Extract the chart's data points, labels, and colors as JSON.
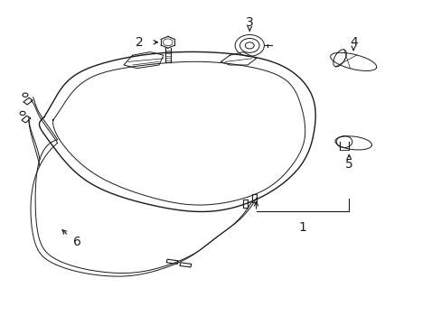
{
  "bg_color": "#ffffff",
  "line_color": "#1a1a1a",
  "fig_width": 4.89,
  "fig_height": 3.6,
  "dpi": 100,
  "label_fontsize": 10,
  "headlamp_outer": {
    "x": [
      0.17,
      0.22,
      0.36,
      0.52,
      0.64,
      0.71,
      0.74,
      0.73,
      0.67,
      0.56,
      0.42,
      0.28,
      0.18,
      0.13,
      0.12,
      0.14,
      0.17
    ],
    "y": [
      0.72,
      0.77,
      0.81,
      0.81,
      0.79,
      0.74,
      0.65,
      0.53,
      0.43,
      0.36,
      0.34,
      0.38,
      0.48,
      0.59,
      0.67,
      0.71,
      0.72
    ]
  },
  "headlamp_inner": {
    "x": [
      0.19,
      0.23,
      0.36,
      0.52,
      0.63,
      0.69,
      0.72,
      0.71,
      0.66,
      0.55,
      0.42,
      0.29,
      0.2,
      0.15,
      0.15,
      0.17,
      0.19
    ],
    "y": [
      0.71,
      0.75,
      0.78,
      0.78,
      0.77,
      0.72,
      0.64,
      0.53,
      0.44,
      0.38,
      0.36,
      0.4,
      0.49,
      0.59,
      0.66,
      0.7,
      0.71
    ]
  },
  "wire_main": {
    "x": [
      0.19,
      0.15,
      0.13,
      0.12,
      0.14,
      0.2,
      0.3,
      0.4,
      0.48,
      0.54,
      0.58
    ],
    "y": [
      0.52,
      0.48,
      0.4,
      0.3,
      0.22,
      0.18,
      0.16,
      0.17,
      0.21,
      0.27,
      0.35
    ]
  },
  "wire_main2": {
    "x": [
      0.19,
      0.15,
      0.13,
      0.12,
      0.14,
      0.2,
      0.3,
      0.4,
      0.48,
      0.52,
      0.56
    ],
    "y": [
      0.53,
      0.49,
      0.41,
      0.31,
      0.23,
      0.19,
      0.17,
      0.18,
      0.22,
      0.28,
      0.35
    ]
  },
  "wire_branch1": {
    "x": [
      0.15,
      0.13,
      0.1,
      0.09
    ],
    "y": [
      0.48,
      0.53,
      0.58,
      0.62
    ]
  },
  "wire_branch2": {
    "x": [
      0.13,
      0.11,
      0.09,
      0.08
    ],
    "y": [
      0.4,
      0.46,
      0.52,
      0.58
    ]
  },
  "wire_branch1b": {
    "x": [
      0.15,
      0.13,
      0.1,
      0.09
    ],
    "y": [
      0.49,
      0.54,
      0.59,
      0.63
    ]
  },
  "wire_branch2b": {
    "x": [
      0.13,
      0.11,
      0.09,
      0.08
    ],
    "y": [
      0.41,
      0.47,
      0.53,
      0.59
    ]
  }
}
